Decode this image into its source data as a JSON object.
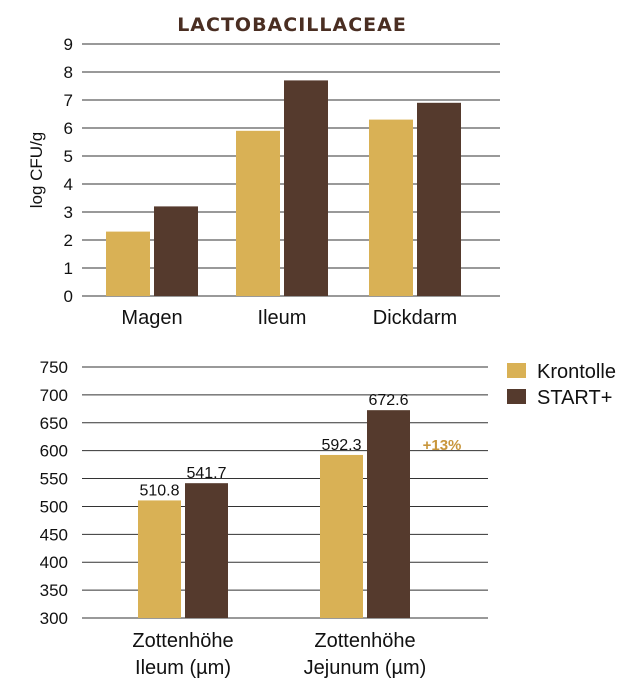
{
  "colors": {
    "krontolle": "#D9B155",
    "start_plus": "#553A2D",
    "title": "#4A2E22",
    "note": "#C8963C"
  },
  "legend": {
    "placement": "right",
    "items": [
      "Krontolle",
      "START+"
    ]
  },
  "chart_data": [
    {
      "type": "bar",
      "title": "LACTOBACILLACEAE",
      "ylabel": "log CFU/g",
      "xlabel": "",
      "ylim": [
        0,
        9
      ],
      "yticks": [
        0,
        1,
        2,
        3,
        4,
        5,
        6,
        7,
        8,
        9
      ],
      "grid": true,
      "categories": [
        "Magen",
        "Ileum",
        "Dickdarm"
      ],
      "series": [
        {
          "name": "Krontolle",
          "values": [
            2.3,
            5.9,
            6.3
          ]
        },
        {
          "name": "START+",
          "values": [
            3.2,
            7.7,
            6.9
          ]
        }
      ]
    },
    {
      "type": "bar",
      "title": "",
      "ylabel": "",
      "xlabel": "",
      "ylim": [
        300,
        750
      ],
      "yticks": [
        300,
        350,
        400,
        450,
        500,
        550,
        600,
        650,
        700,
        750
      ],
      "grid": true,
      "categories": [
        [
          "Zottenhöhe",
          "Ileum (µm)"
        ],
        [
          "Zottenhöhe",
          "Jejunum (µm)"
        ]
      ],
      "series": [
        {
          "name": "Krontolle",
          "values": [
            510.8,
            592.3
          ],
          "labels": [
            "510.8",
            "592.3"
          ]
        },
        {
          "name": "START+",
          "values": [
            541.7,
            672.6
          ],
          "labels": [
            "541.7",
            "672.6"
          ]
        }
      ],
      "annotations": [
        {
          "category": 1,
          "text": "+13%"
        }
      ]
    }
  ]
}
